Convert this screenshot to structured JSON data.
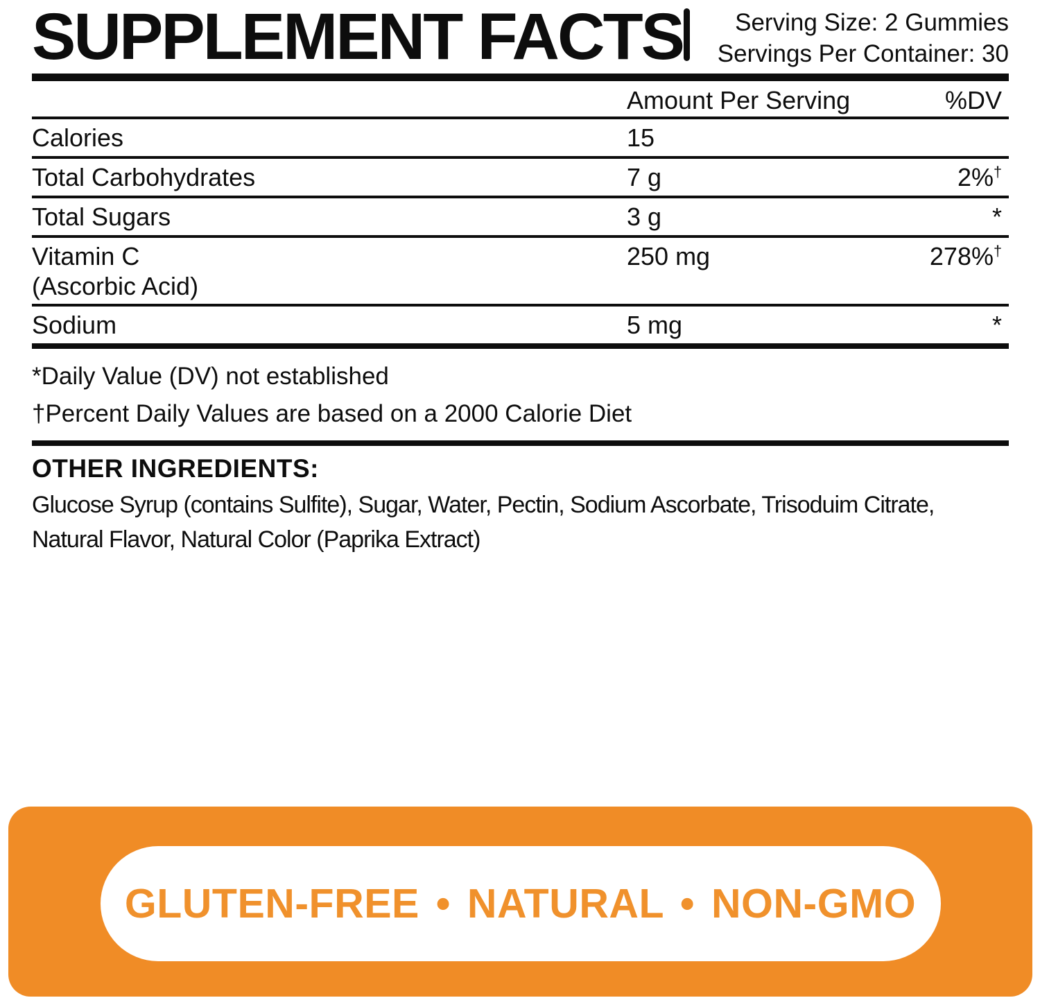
{
  "header": {
    "title": "SUPPLEMENT FACTS",
    "serving_size": "Serving Size: 2 Gummies",
    "servings_per_container": "Servings Per Container: 30"
  },
  "table": {
    "columns": {
      "amount": "Amount Per Serving",
      "dv": "%DV"
    },
    "rows": [
      {
        "name": "Calories",
        "amount": "15",
        "dv": "",
        "dv_note": ""
      },
      {
        "name": "Total Carbohydrates",
        "amount": "7 g",
        "dv": "2%",
        "dv_note": "†"
      },
      {
        "name": "Total Sugars",
        "amount": "3 g",
        "dv": "*",
        "dv_note": ""
      },
      {
        "name": "Vitamin C",
        "name_sub": "(Ascorbic Acid)",
        "amount": "250 mg",
        "dv": "278%",
        "dv_note": "†"
      },
      {
        "name": "Sodium",
        "amount": "5 mg",
        "dv": "*",
        "dv_note": ""
      }
    ]
  },
  "footnotes": [
    "*Daily Value (DV) not established",
    "†Percent Daily Values are based on a 2000 Calorie Diet"
  ],
  "other_ingredients": {
    "heading": "OTHER INGREDIENTS:",
    "lines": [
      "Glucose Syrup (contains Sulfite), Sugar, Water, Pectin, Sodium Ascorbate, Trisoduim Citrate,",
      "Natural Flavor, Natural Color (Paprika Extract)"
    ]
  },
  "badge": {
    "label": "GLUTEN-FREE • NATURAL • NON-GMO",
    "background_color": "#F08C26",
    "text_color": "#F0912C"
  },
  "colors": {
    "text": "#0d0d0d"
  }
}
